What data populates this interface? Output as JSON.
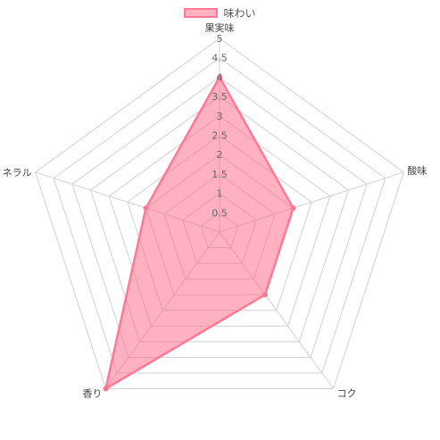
{
  "chart_data": {
    "type": "radar",
    "categories": [
      "果実味",
      "酸味",
      "コク",
      "香り",
      "ミネラル"
    ],
    "series": [
      {
        "name": "味わい",
        "values": [
          4,
          2,
          2,
          5,
          2
        ]
      }
    ],
    "rlim": [
      0,
      5
    ],
    "ticks": [
      "0.5",
      "1",
      "1.5",
      "2",
      "2.5",
      "3",
      "3.5",
      "4",
      "4.5",
      "5"
    ],
    "legend_position": "top",
    "colors": {
      "fill": "rgba(255,99,132,0.5)",
      "stroke": "#ff7896",
      "grid": "#d0d0d0"
    }
  }
}
